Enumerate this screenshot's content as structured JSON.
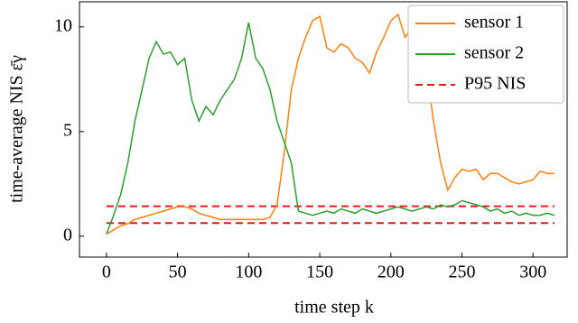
{
  "chart_data": {
    "type": "line",
    "x_label": "time step k",
    "y_label": "time-average NIS ε̄γ",
    "x": [
      0,
      5,
      10,
      15,
      20,
      25,
      30,
      35,
      40,
      45,
      50,
      55,
      60,
      65,
      70,
      75,
      80,
      85,
      90,
      95,
      100,
      105,
      110,
      115,
      120,
      125,
      130,
      135,
      140,
      145,
      150,
      155,
      160,
      165,
      170,
      175,
      180,
      185,
      190,
      195,
      200,
      205,
      210,
      215,
      220,
      225,
      230,
      235,
      240,
      245,
      250,
      255,
      260,
      265,
      270,
      275,
      280,
      285,
      290,
      295,
      300,
      305,
      310,
      315
    ],
    "series": [
      {
        "name": "sensor 1",
        "color": "#ff7f0e",
        "values": [
          0.1,
          0.3,
          0.5,
          0.6,
          0.8,
          0.9,
          1.0,
          1.1,
          1.2,
          1.3,
          1.4,
          1.4,
          1.3,
          1.1,
          1.0,
          0.9,
          0.8,
          0.8,
          0.8,
          0.8,
          0.8,
          0.8,
          0.8,
          0.9,
          1.5,
          4.0,
          7.0,
          8.5,
          9.5,
          10.3,
          10.5,
          9.0,
          8.8,
          9.2,
          9.0,
          8.5,
          8.3,
          7.8,
          8.8,
          9.5,
          10.3,
          10.6,
          9.5,
          10.0,
          9.5,
          8.0,
          5.5,
          3.5,
          2.2,
          2.8,
          3.2,
          3.1,
          3.2,
          2.7,
          3.0,
          3.0,
          2.8,
          2.6,
          2.5,
          2.6,
          2.7,
          3.1,
          3.0,
          3.0
        ]
      },
      {
        "name": "sensor 2",
        "color": "#2ca02c",
        "values": [
          0.1,
          1.0,
          2.0,
          3.5,
          5.5,
          7.0,
          8.5,
          9.3,
          8.7,
          8.8,
          8.2,
          8.5,
          6.5,
          5.5,
          6.2,
          5.8,
          6.5,
          7.0,
          7.5,
          8.5,
          10.2,
          8.5,
          8.0,
          7.0,
          5.5,
          4.5,
          3.5,
          1.2,
          1.1,
          1.0,
          1.1,
          1.2,
          1.1,
          1.3,
          1.2,
          1.1,
          1.3,
          1.2,
          1.1,
          1.2,
          1.3,
          1.4,
          1.3,
          1.2,
          1.3,
          1.4,
          1.3,
          1.5,
          1.4,
          1.5,
          1.7,
          1.6,
          1.5,
          1.4,
          1.2,
          1.3,
          1.1,
          1.2,
          1.0,
          1.1,
          1.0,
          1.0,
          1.1,
          1.0
        ]
      }
    ],
    "reference_lines": {
      "name": "P95 NIS",
      "color": "#e41a1c",
      "values": [
        0.63,
        1.43
      ]
    },
    "xlim": [
      -19,
      324
    ],
    "ylim": [
      -1,
      11.2
    ],
    "xticks": [
      0,
      50,
      100,
      150,
      200,
      250,
      300
    ],
    "yticks": [
      0,
      5,
      10
    ],
    "legend": "upper right"
  }
}
